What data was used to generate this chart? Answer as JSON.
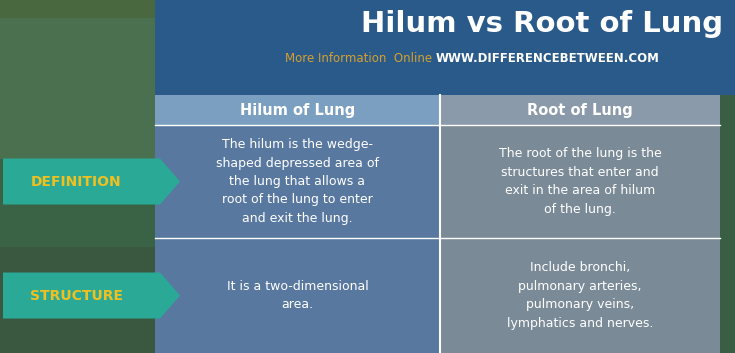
{
  "title": "Hilum vs Root of Lung",
  "subtitle_gray": "More Information  Online",
  "subtitle_url": "WWW.DIFFERENCEBETWEEN.COM",
  "col1_header": "Hilum of Lung",
  "col2_header": "Root of Lung",
  "row1_label": "DEFINITION",
  "row2_label": "STRUCTURE",
  "cell_hilum_def": "The hilum is the wedge-\nshaped depressed area of\nthe lung that allows a\nroot of the lung to enter\nand exit the lung.",
  "cell_root_def": "The root of the lung is the\nstructures that enter and\nexit in the area of hilum\nof the lung.",
  "cell_hilum_struct": "It is a two-dimensional\narea.",
  "cell_root_struct": "Include bronchi,\npulmonary arteries,\npulmonary veins,\nlymphatics and nerves.",
  "color_teal": "#2aaa96",
  "color_blue_header": "#7a9fc0",
  "color_blue_cell": "#5878a0",
  "color_gray_header": "#8a9aaa",
  "color_gray_cell": "#7a8a96",
  "color_dark_blue_band": "#2a5a8a",
  "color_title": "#ffffff",
  "color_subtitle_gold": "#d4a030",
  "color_subtitle_url": "#ffffff",
  "color_label": "#f0c020",
  "color_cell_text": "#ffffff",
  "bg_left_top": "#4a7a50",
  "bg_right_top": "#3a6a80",
  "bg_left_bottom": "#3a6040",
  "bg_right_bottom": "#2a5060",
  "fig_w": 7.35,
  "fig_h": 3.53,
  "dpi": 100
}
